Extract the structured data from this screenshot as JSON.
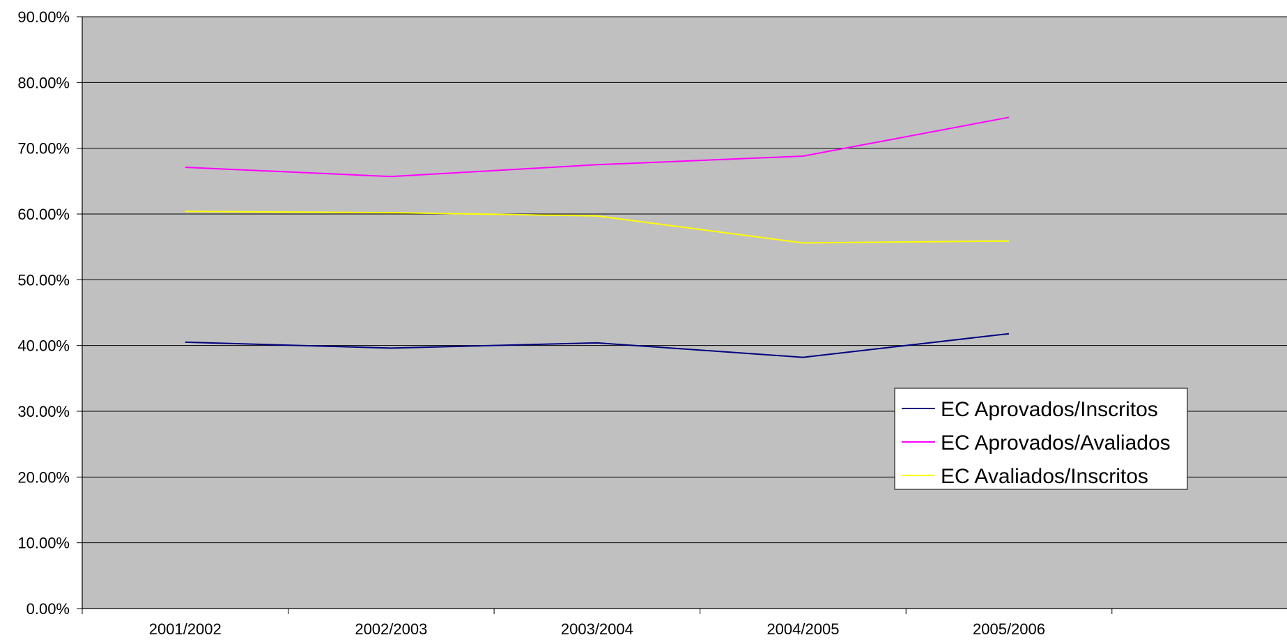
{
  "chart_data": {
    "type": "line",
    "title": "",
    "xlabel": "",
    "ylabel": "",
    "categories": [
      "2001/2002",
      "2002/2003",
      "2003/2004",
      "2004/2005",
      "2005/2006"
    ],
    "series": [
      {
        "name": "EC Aprovados/Inscritos",
        "color": "#000080",
        "values": [
          40.5,
          39.6,
          40.4,
          38.2,
          41.8
        ]
      },
      {
        "name": "EC Aprovados/Avaliados",
        "color": "#ff00ff",
        "values": [
          67.1,
          65.7,
          67.5,
          68.8,
          74.7
        ]
      },
      {
        "name": "EC Avaliados/Inscritos",
        "color": "#ffff00",
        "values": [
          60.4,
          60.2,
          59.7,
          55.6,
          55.9
        ]
      }
    ],
    "ylim": [
      0,
      90
    ],
    "yticks": [
      "0.00%",
      "10.00%",
      "20.00%",
      "30.00%",
      "40.00%",
      "50.00%",
      "60.00%",
      "70.00%",
      "80.00%",
      "90.00%"
    ],
    "grid": true,
    "legend_position": "right",
    "plot_background": "#c0c0c0"
  }
}
